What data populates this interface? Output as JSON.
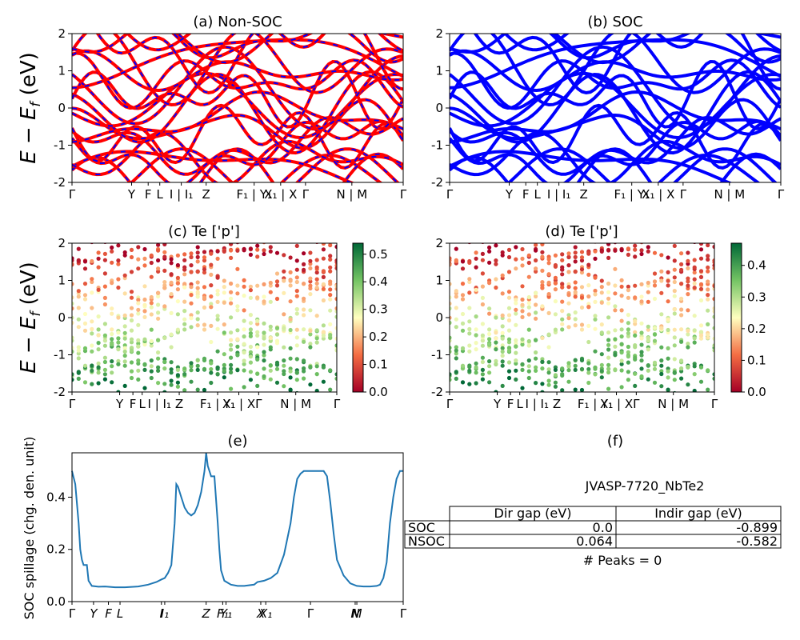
{
  "chart_data": [
    {
      "type": "line",
      "title": "(a) Non-SOC",
      "ylabel": "E - E_f (eV)",
      "ylim": [
        -2,
        2
      ],
      "yticks": [
        -2,
        -1,
        0,
        1,
        2
      ],
      "kpath_labels": [
        "Γ",
        "Y",
        "F",
        "L",
        "I | I₁",
        "Z",
        "F₁ | Y₁",
        "X₁ | X",
        "Γ",
        "N | M",
        "Γ"
      ],
      "kpath_x": [
        0,
        0.18,
        0.23,
        0.265,
        0.33,
        0.405,
        0.55,
        0.63,
        0.705,
        0.845,
        1.0
      ],
      "series": [
        {
          "color": "#ff0000",
          "dash_color": "#0000ff"
        }
      ]
    },
    {
      "type": "line",
      "title": "(b) SOC",
      "ylim": [
        -2,
        2
      ],
      "yticks": [
        -2,
        -1,
        0,
        1,
        2
      ],
      "kpath_labels": [
        "Γ",
        "Y",
        "F",
        "L",
        "I | I₁",
        "Z",
        "F₁ | Y₁",
        "X₁ | X",
        "Γ",
        "N | M",
        "Γ"
      ],
      "kpath_x": [
        0,
        0.18,
        0.23,
        0.265,
        0.33,
        0.405,
        0.55,
        0.63,
        0.705,
        0.845,
        1.0
      ],
      "series": [
        {
          "color": "#0000ff"
        }
      ]
    },
    {
      "type": "scatter",
      "title": "(c)  Te ['p']",
      "ylabel": "E - E_f (eV)",
      "ylim": [
        -2,
        2
      ],
      "yticks": [
        -2,
        -1,
        0,
        1,
        2
      ],
      "kpath_labels": [
        "Γ",
        "Y",
        "F",
        "L",
        "I | I₁",
        "Z",
        "F₁ | Y₁",
        "X₁ | X",
        "Γ",
        "N | M",
        "Γ"
      ],
      "kpath_x": [
        0,
        0.18,
        0.23,
        0.265,
        0.33,
        0.405,
        0.55,
        0.63,
        0.705,
        0.845,
        1.0
      ],
      "colorbar": {
        "min": 0.0,
        "max": 0.54,
        "ticks": [
          "0.0",
          "0.1",
          "0.2",
          "0.3",
          "0.4",
          "0.5"
        ]
      }
    },
    {
      "type": "scatter",
      "title": "(d) Te ['p']",
      "ylim": [
        -2,
        2
      ],
      "yticks": [
        -2,
        -1,
        0,
        1,
        2
      ],
      "kpath_labels": [
        "Γ",
        "Y",
        "F",
        "L",
        "I | I₁",
        "Z",
        "F₁ | Y₁",
        "X₁ | X",
        "Γ",
        "N | M",
        "Γ"
      ],
      "kpath_x": [
        0,
        0.18,
        0.23,
        0.265,
        0.33,
        0.405,
        0.55,
        0.63,
        0.705,
        0.845,
        1.0
      ],
      "colorbar": {
        "min": 0.0,
        "max": 0.47,
        "ticks": [
          "0.0",
          "0.1",
          "0.2",
          "0.3",
          "0.4"
        ]
      }
    },
    {
      "type": "line",
      "title": "(e)",
      "ylabel": "SOC spillage (chg. den. unit)",
      "ylim": [
        0,
        0.57
      ],
      "yticks": [
        0.0,
        0.2,
        0.4
      ],
      "kpath_labels": [
        "Γ",
        "Y",
        "F",
        "L",
        "I",
        "I₁",
        "Z",
        "F₁",
        "Y₁",
        "X",
        "X₁",
        "Γ",
        "N",
        "M",
        "Γ"
      ],
      "kpath_x": [
        0,
        0.065,
        0.11,
        0.145,
        0.27,
        0.28,
        0.405,
        0.455,
        0.465,
        0.57,
        0.585,
        0.72,
        0.855,
        0.86,
        1.0
      ],
      "series": [
        {
          "color": "#1f77b4",
          "x": [
            0,
            0.01,
            0.02,
            0.025,
            0.03,
            0.035,
            0.045,
            0.05,
            0.06,
            0.08,
            0.1,
            0.13,
            0.16,
            0.2,
            0.23,
            0.255,
            0.27,
            0.28,
            0.29,
            0.3,
            0.31,
            0.315,
            0.32,
            0.33,
            0.34,
            0.35,
            0.36,
            0.37,
            0.38,
            0.39,
            0.4,
            0.405,
            0.41,
            0.42,
            0.43,
            0.44,
            0.445,
            0.45,
            0.46,
            0.48,
            0.5,
            0.52,
            0.55,
            0.56,
            0.58,
            0.6,
            0.62,
            0.64,
            0.66,
            0.67,
            0.68,
            0.69,
            0.7,
            0.72,
            0.74,
            0.76,
            0.77,
            0.78,
            0.79,
            0.8,
            0.82,
            0.84,
            0.86,
            0.88,
            0.9,
            0.92,
            0.93,
            0.94,
            0.95,
            0.96,
            0.97,
            0.98,
            0.99,
            1.0
          ],
          "values": [
            0.5,
            0.45,
            0.3,
            0.2,
            0.16,
            0.14,
            0.14,
            0.08,
            0.06,
            0.057,
            0.058,
            0.055,
            0.055,
            0.058,
            0.065,
            0.075,
            0.085,
            0.09,
            0.11,
            0.14,
            0.3,
            0.45,
            0.44,
            0.4,
            0.36,
            0.34,
            0.33,
            0.34,
            0.37,
            0.42,
            0.5,
            0.57,
            0.52,
            0.48,
            0.48,
            0.3,
            0.2,
            0.12,
            0.08,
            0.065,
            0.06,
            0.06,
            0.065,
            0.075,
            0.08,
            0.09,
            0.11,
            0.18,
            0.3,
            0.4,
            0.47,
            0.49,
            0.5,
            0.5,
            0.5,
            0.5,
            0.48,
            0.38,
            0.26,
            0.16,
            0.1,
            0.07,
            0.06,
            0.058,
            0.058,
            0.06,
            0.065,
            0.09,
            0.15,
            0.3,
            0.4,
            0.47,
            0.5,
            0.5
          ]
        }
      ]
    },
    {
      "type": "table",
      "title": "(f)",
      "table_title": "JVASP-7720_NbTe2",
      "headers": [
        "",
        "Dir gap (eV)",
        "Indir gap (eV)"
      ],
      "rows": [
        [
          "SOC",
          "0.0",
          "-0.899"
        ],
        [
          "NSOC",
          "0.064",
          "-0.582"
        ]
      ],
      "footer": "# Peaks = 0"
    }
  ]
}
